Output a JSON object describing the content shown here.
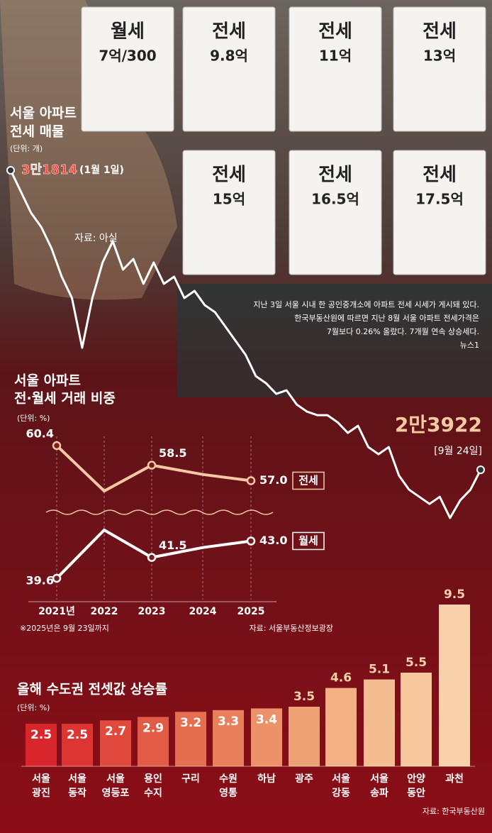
{
  "photo": {
    "signs": [
      {
        "kind": "월세",
        "price": "7억/300"
      },
      {
        "kind": "전세",
        "price": "9.8억"
      },
      {
        "kind": "전세",
        "price": "11억"
      },
      {
        "kind": "전세",
        "price": "13억"
      },
      {
        "kind": "전세",
        "price": "15억"
      },
      {
        "kind": "전세",
        "price": "16.5억"
      },
      {
        "kind": "전세",
        "price": "17.5억"
      }
    ],
    "caption": [
      "지난 3일 서울 시내 한 공인중개소에 아파트 전세 시세가 게시돼 있다.",
      "한국부동산원에 따르면 지난 8월 서울 아파트 전세가격은",
      "7월보다 0.26% 올랐다. 7개월 연속 상승세다."
    ],
    "credit": "뉴스1"
  },
  "chart_data": [
    {
      "type": "line",
      "title": [
        "서울 아파트",
        "전세 매물"
      ],
      "unit": "(단위: 개)",
      "source": "자료: 아실",
      "color": "#ffffff",
      "categories": [
        "(1월 1일)",
        null,
        null,
        null,
        null,
        null,
        null,
        null,
        null,
        null,
        null,
        null,
        null,
        null,
        null,
        null,
        null,
        null,
        null,
        null,
        null,
        null,
        null,
        null,
        null,
        null,
        null,
        null,
        null,
        null,
        null,
        null,
        null,
        null,
        null,
        null,
        null,
        null,
        null,
        null,
        null,
        null,
        null,
        null,
        null,
        null,
        "[9월 24일]"
      ],
      "values": [
        31814,
        31253,
        30692,
        30318,
        29757,
        29009,
        28448,
        27139,
        28448,
        29383,
        29944,
        29196,
        29477,
        28822,
        29383,
        28822,
        29009,
        28448,
        28635,
        28261,
        28074,
        27700,
        27326,
        26952,
        26391,
        26204,
        25923,
        26017,
        25643,
        25456,
        25362,
        25362,
        25175,
        24895,
        25082,
        24521,
        24334,
        24521,
        23772,
        23398,
        23211,
        23024,
        23211,
        22653,
        23118,
        23398,
        23922
      ],
      "value_labels": [
        "3만1814",
        null,
        null,
        null,
        null,
        null,
        null,
        null,
        null,
        null,
        null,
        null,
        null,
        null,
        null,
        null,
        null,
        null,
        null,
        null,
        null,
        null,
        null,
        null,
        null,
        null,
        null,
        null,
        null,
        null,
        null,
        null,
        null,
        null,
        null,
        null,
        null,
        null,
        null,
        null,
        null,
        null,
        null,
        null,
        null,
        null,
        "2만3922"
      ]
    },
    {
      "type": "line",
      "title": [
        "서울 아파트",
        "전·월세 거래 비중"
      ],
      "unit": "(단위: %)",
      "note": "※2025년은 9월 23일까지",
      "source": "자료: 서울부동산정보광장",
      "categories": [
        "2021년",
        "2022",
        "2023",
        "2024",
        "2025"
      ],
      "series": [
        {
          "name": "전세",
          "color": "#f6c9a4",
          "values": [
            60.4,
            56.0,
            58.5,
            57.6,
            57.0
          ],
          "value_labels": [
            "60.4",
            null,
            "58.5",
            null,
            "57.0"
          ]
        },
        {
          "name": "월세",
          "color": "#ffffff",
          "values": [
            39.6,
            44.0,
            41.5,
            42.4,
            43.0
          ],
          "value_labels": [
            "39.6",
            null,
            "41.5",
            null,
            "43.0"
          ]
        }
      ]
    },
    {
      "type": "bar",
      "title": "올해 수도권 전셋값 상승률",
      "unit": "(단위: %)",
      "source": "자료: 한국부동산원",
      "categories": [
        [
          "서울",
          "광진"
        ],
        [
          "서울",
          "동작"
        ],
        [
          "서울",
          "영등포"
        ],
        [
          "용인",
          "수지"
        ],
        [
          "구리"
        ],
        [
          "수원",
          "영통"
        ],
        [
          "하남"
        ],
        [
          "광주"
        ],
        [
          "서울",
          "강동"
        ],
        [
          "서울",
          "송파"
        ],
        [
          "안양",
          "동안"
        ],
        [
          "과천"
        ]
      ],
      "values": [
        2.5,
        2.5,
        2.7,
        2.9,
        3.2,
        3.3,
        3.4,
        3.5,
        4.6,
        5.1,
        5.5,
        9.5
      ],
      "colors": [
        "#d9262c",
        "#dc3532",
        "#df4a3c",
        "#e25c45",
        "#e56e50",
        "#e9805c",
        "#ec9168",
        "#efa176",
        "#f2b084",
        "#f4bc91",
        "#f6c69c",
        "#f8d0aa"
      ]
    }
  ]
}
